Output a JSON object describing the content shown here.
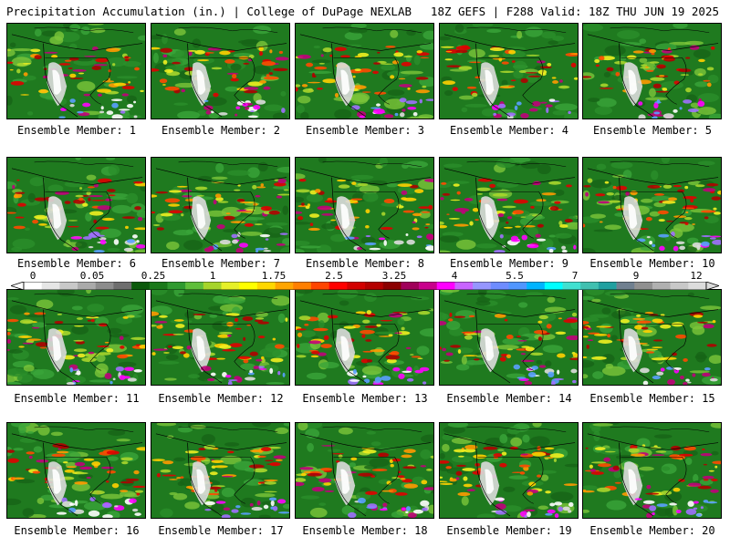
{
  "header": {
    "left_title": "Precipitation Accumulation (in.) | College of DuPage NEXLAB",
    "right_title": "18Z GEFS | F288 Valid: 18Z THU JUN 19 2025"
  },
  "colorbar": {
    "tick_labels": [
      "0",
      "0.05",
      "0.25",
      "1",
      "1.75",
      "2.5",
      "3.25",
      "4",
      "5.5",
      "7",
      "9",
      "12"
    ],
    "colors": [
      "#ffffff",
      "#e6e6e6",
      "#c8c8c8",
      "#aaaaaa",
      "#8c8c8c",
      "#6e6e6e",
      "#0a5a0a",
      "#1a7a1a",
      "#2f9a2f",
      "#5fbe3a",
      "#a6d42a",
      "#e6f028",
      "#ffff00",
      "#ffd700",
      "#ffa500",
      "#ff7f00",
      "#ff4500",
      "#ff0000",
      "#d20000",
      "#b40000",
      "#8b0000",
      "#a0005a",
      "#c8008c",
      "#ff00ff",
      "#c864ff",
      "#9696ff",
      "#6e8cff",
      "#5096ff",
      "#00b4ff",
      "#00ffff",
      "#40e0d0",
      "#40c0b0",
      "#20a0a0",
      "#708090",
      "#909090",
      "#b0b0b0",
      "#c8c8c8",
      "#dcdcdc"
    ]
  },
  "members": [
    {
      "label": "Ensemble Member: 1"
    },
    {
      "label": "Ensemble Member: 2"
    },
    {
      "label": "Ensemble Member: 3"
    },
    {
      "label": "Ensemble Member: 4"
    },
    {
      "label": "Ensemble Member: 5"
    },
    {
      "label": "Ensemble Member: 6"
    },
    {
      "label": "Ensemble Member: 7"
    },
    {
      "label": "Ensemble Member: 8"
    },
    {
      "label": "Ensemble Member: 9"
    },
    {
      "label": "Ensemble Member: 10"
    },
    {
      "label": "Ensemble Member: 11"
    },
    {
      "label": "Ensemble Member: 12"
    },
    {
      "label": "Ensemble Member: 13"
    },
    {
      "label": "Ensemble Member: 14"
    },
    {
      "label": "Ensemble Member: 15"
    },
    {
      "label": "Ensemble Member: 16"
    },
    {
      "label": "Ensemble Member: 17"
    },
    {
      "label": "Ensemble Member: 18"
    },
    {
      "label": "Ensemble Member: 19"
    },
    {
      "label": "Ensemble Member: 20"
    }
  ]
}
